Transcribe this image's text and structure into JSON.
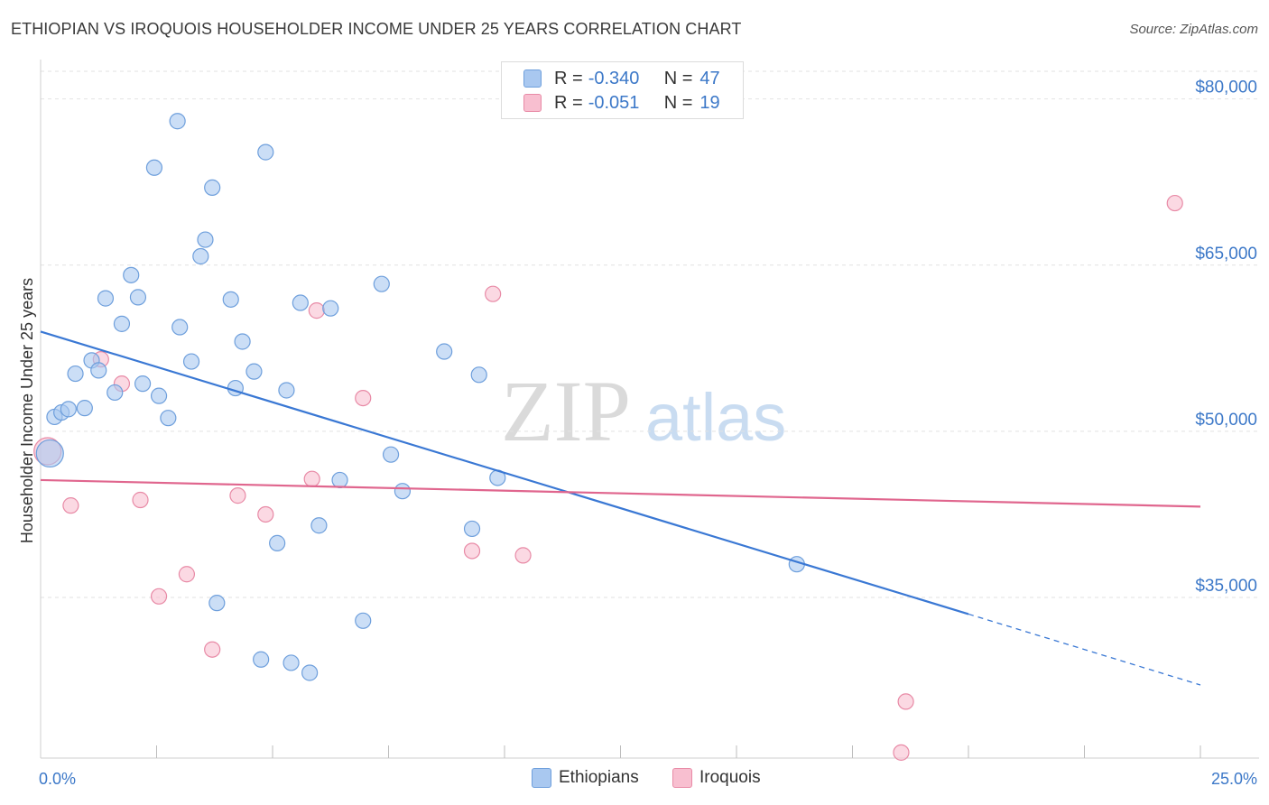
{
  "title": "ETHIOPIAN VS IROQUOIS HOUSEHOLDER INCOME UNDER 25 YEARS CORRELATION CHART",
  "source": "Source: ZipAtlas.com",
  "watermark": {
    "zip": "ZIP",
    "atlas": "atlas"
  },
  "legend": {
    "rows": [
      {
        "r_label": "R =",
        "r_value": "-0.340",
        "n_label": "N =",
        "n_value": "47",
        "color": "#a9c8f0",
        "border": "#6e9fdc"
      },
      {
        "r_label": "R =",
        "r_value": "-0.051",
        "n_label": "N =",
        "n_value": "19",
        "color": "#f8bfd0",
        "border": "#e88aa6"
      }
    ]
  },
  "bottom_legend": {
    "ethiopians": "Ethiopians",
    "iroquois": "Iroquois"
  },
  "chart_data": {
    "type": "scatter",
    "title": "ETHIOPIAN VS IROQUOIS HOUSEHOLDER INCOME UNDER 25 YEARS CORRELATION CHART",
    "xlabel": "",
    "ylabel": "Householder Income Under 25 years",
    "xlim": [
      0,
      25
    ],
    "ylim": [
      20500,
      82500
    ],
    "x_tick_labels": [
      "0.0%",
      "25.0%"
    ],
    "y_ticks": [
      35000,
      50000,
      65000,
      80000
    ],
    "y_tick_labels": [
      "$35,000",
      "$50,000",
      "$65,000",
      "$80,000"
    ],
    "grid": true,
    "series": [
      {
        "name": "Ethiopians",
        "color": "#a9c8f0",
        "stroke": "#6e9fdc",
        "points": [
          [
            0.2,
            48000
          ],
          [
            0.3,
            51300
          ],
          [
            0.45,
            51700
          ],
          [
            0.6,
            52000
          ],
          [
            0.75,
            55200
          ],
          [
            0.95,
            52100
          ],
          [
            1.1,
            56400
          ],
          [
            1.25,
            55500
          ],
          [
            1.4,
            62000
          ],
          [
            1.6,
            53500
          ],
          [
            1.75,
            59700
          ],
          [
            1.95,
            64100
          ],
          [
            2.1,
            62100
          ],
          [
            2.2,
            54300
          ],
          [
            2.45,
            73800
          ],
          [
            2.55,
            53200
          ],
          [
            2.75,
            51200
          ],
          [
            2.95,
            78000
          ],
          [
            3.0,
            59400
          ],
          [
            3.25,
            56300
          ],
          [
            3.45,
            65800
          ],
          [
            3.55,
            67300
          ],
          [
            3.7,
            72000
          ],
          [
            3.8,
            34500
          ],
          [
            4.1,
            61900
          ],
          [
            4.2,
            53900
          ],
          [
            4.35,
            58100
          ],
          [
            4.6,
            55400
          ],
          [
            4.75,
            29400
          ],
          [
            4.85,
            75200
          ],
          [
            5.1,
            39900
          ],
          [
            5.3,
            53700
          ],
          [
            5.4,
            29100
          ],
          [
            5.6,
            61600
          ],
          [
            5.8,
            28200
          ],
          [
            6.0,
            41500
          ],
          [
            6.25,
            61100
          ],
          [
            6.45,
            45600
          ],
          [
            6.95,
            32900
          ],
          [
            7.35,
            63300
          ],
          [
            7.55,
            47900
          ],
          [
            7.8,
            44600
          ],
          [
            8.7,
            57200
          ],
          [
            9.3,
            41200
          ],
          [
            9.45,
            55100
          ],
          [
            9.85,
            45800
          ],
          [
            16.3,
            38000
          ]
        ]
      },
      {
        "name": "Iroquois",
        "color": "#f8bfd0",
        "stroke": "#e88aa6",
        "points": [
          [
            0.15,
            48200
          ],
          [
            0.65,
            43300
          ],
          [
            1.3,
            56500
          ],
          [
            1.75,
            54300
          ],
          [
            2.15,
            43800
          ],
          [
            2.55,
            35100
          ],
          [
            3.15,
            37100
          ],
          [
            3.7,
            30300
          ],
          [
            4.25,
            44200
          ],
          [
            4.85,
            42500
          ],
          [
            5.85,
            45700
          ],
          [
            5.95,
            60900
          ],
          [
            6.95,
            53000
          ],
          [
            9.3,
            39200
          ],
          [
            9.75,
            62400
          ],
          [
            10.4,
            38800
          ],
          [
            18.55,
            21000
          ],
          [
            18.65,
            25600
          ],
          [
            24.45,
            70600
          ]
        ]
      }
    ],
    "trendlines": [
      {
        "series": "Ethiopians",
        "color": "#3a78d4",
        "solid": [
          [
            0,
            59000
          ],
          [
            20,
            33500
          ]
        ],
        "dashed": [
          [
            20,
            33500
          ],
          [
            25,
            27100
          ]
        ]
      },
      {
        "series": "Iroquois",
        "color": "#e0668e",
        "solid": [
          [
            0,
            45600
          ],
          [
            25,
            43200
          ]
        ]
      }
    ]
  }
}
